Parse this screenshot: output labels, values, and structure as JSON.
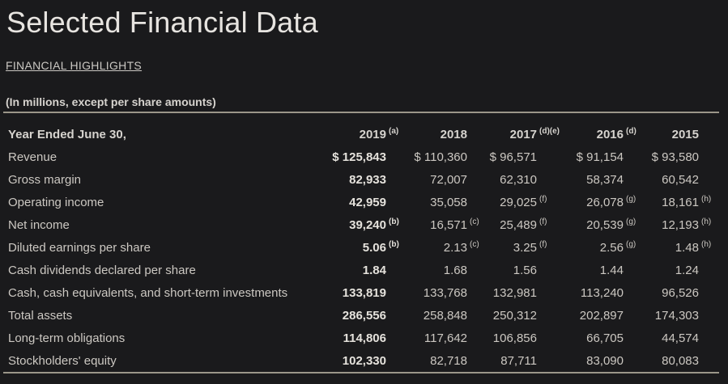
{
  "page": {
    "title": "Selected Financial Data",
    "highlights_link": "FINANCIAL HIGHLIGHTS",
    "units_note": "(In millions, except per share amounts)"
  },
  "colors": {
    "background": "#1a1a1c",
    "body_text": "#ccc8c2",
    "emphasis_text": "#e5e2dc",
    "title_text": "#e7e4e0",
    "rule": "#9b9689"
  },
  "table": {
    "header": {
      "label": "Year Ended June 30,",
      "years": [
        {
          "year": "2019",
          "footnote": "(a)"
        },
        {
          "year": "2018",
          "footnote": ""
        },
        {
          "year": "2017",
          "footnote": "(d)(e)"
        },
        {
          "year": "2016",
          "footnote": "(d)"
        },
        {
          "year": "2015",
          "footnote": ""
        }
      ]
    },
    "rows": [
      {
        "label": "Revenue",
        "values": [
          "$ 125,843",
          "$ 110,360",
          "$ 96,571",
          "$ 91,154",
          "$ 93,580"
        ],
        "footnotes": [
          "",
          "",
          "",
          "",
          ""
        ]
      },
      {
        "label": "Gross margin",
        "values": [
          "82,933",
          "72,007",
          "62,310",
          "58,374",
          "60,542"
        ],
        "footnotes": [
          "",
          "",
          "",
          "",
          ""
        ]
      },
      {
        "label": "Operating income",
        "values": [
          "42,959",
          "35,058",
          "29,025",
          "26,078",
          "18,161"
        ],
        "footnotes": [
          "",
          "",
          "(f)",
          "(g)",
          "(h)"
        ]
      },
      {
        "label": "Net income",
        "values": [
          "39,240",
          "16,571",
          "25,489",
          "20,539",
          "12,193"
        ],
        "footnotes": [
          "(b)",
          "(c)",
          "(f)",
          "(g)",
          "(h)"
        ]
      },
      {
        "label": "Diluted earnings per share",
        "values": [
          "5.06",
          "2.13",
          "3.25",
          "2.56",
          "1.48"
        ],
        "footnotes": [
          "(b)",
          "(c)",
          "(f)",
          "(g)",
          "(h)"
        ]
      },
      {
        "label": "Cash dividends declared per share",
        "values": [
          "1.84",
          "1.68",
          "1.56",
          "1.44",
          "1.24"
        ],
        "footnotes": [
          "",
          "",
          "",
          "",
          ""
        ]
      },
      {
        "label": "Cash, cash equivalents, and short-term investments",
        "values": [
          "133,819",
          "133,768",
          "132,981",
          "113,240",
          "96,526"
        ],
        "footnotes": [
          "",
          "",
          "",
          "",
          ""
        ]
      },
      {
        "label": "Total assets",
        "values": [
          "286,556",
          "258,848",
          "250,312",
          "202,897",
          "174,303"
        ],
        "footnotes": [
          "",
          "",
          "",
          "",
          ""
        ]
      },
      {
        "label": "Long-term obligations",
        "values": [
          "114,806",
          "117,642",
          "106,856",
          "66,705",
          "44,574"
        ],
        "footnotes": [
          "",
          "",
          "",
          "",
          ""
        ]
      },
      {
        "label": "Stockholders' equity",
        "values": [
          "102,330",
          "82,718",
          "87,711",
          "83,090",
          "80,083"
        ],
        "footnotes": [
          "",
          "",
          "",
          "",
          ""
        ]
      }
    ]
  }
}
